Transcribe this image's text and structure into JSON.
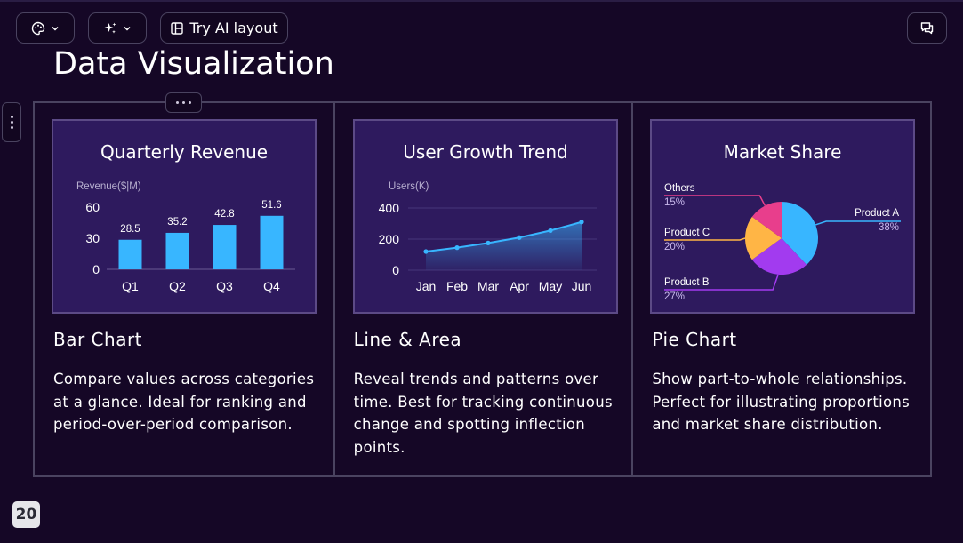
{
  "toolbar": {
    "layout_label": "Try AI layout",
    "theme_icon": "palette-icon",
    "ai_icon": "sparkle-icon",
    "comment_icon": "comment-icon"
  },
  "page": {
    "title": "Data Visualization",
    "number": "20"
  },
  "colors": {
    "background": "#150726",
    "chart_panel": "#2e1a5e",
    "bar": "#38b6ff",
    "line": "#38b6ff",
    "pie": [
      "#38b6ff",
      "#a23bef",
      "#ffb545",
      "#e83e8c"
    ]
  },
  "cards": [
    {
      "title": "Bar Chart",
      "description": "Compare values across categories at a glance. Ideal for ranking and period-over-period comparison."
    },
    {
      "title": "Line & Area",
      "description": "Reveal trends and patterns over time. Best for tracking continuous change and spotting inflection points."
    },
    {
      "title": "Pie Chart",
      "description": "Show part-to-whole relationships. Perfect for illustrating proportions and market share distribution."
    }
  ],
  "chart_data": [
    {
      "type": "bar",
      "title": "Quarterly Revenue",
      "ylabel": "Revenue($|M)",
      "categories": [
        "Q1",
        "Q2",
        "Q3",
        "Q4"
      ],
      "values": [
        28.5,
        35.2,
        42.8,
        51.6
      ],
      "yticks": [
        0,
        30,
        60
      ],
      "ylim": [
        0,
        60
      ]
    },
    {
      "type": "area",
      "title": "User Growth Trend",
      "ylabel": "Users(K)",
      "categories": [
        "Jan",
        "Feb",
        "Mar",
        "Apr",
        "May",
        "Jun"
      ],
      "values": [
        120,
        145,
        175,
        210,
        255,
        310
      ],
      "yticks": [
        0,
        200,
        400
      ],
      "ylim": [
        0,
        400
      ]
    },
    {
      "type": "pie",
      "title": "Market Share",
      "slices": [
        {
          "label": "Product A",
          "value": 38,
          "pct": "38%"
        },
        {
          "label": "Product B",
          "value": 27,
          "pct": "27%"
        },
        {
          "label": "Product C",
          "value": 20,
          "pct": "20%"
        },
        {
          "label": "Others",
          "value": 15,
          "pct": "15%"
        }
      ]
    }
  ]
}
